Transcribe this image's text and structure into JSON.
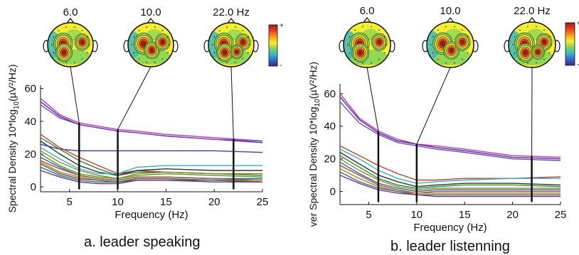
{
  "captions": {
    "a": "a. leader speaking",
    "b": "b. leader listenning"
  },
  "colorbar": {
    "plus": "+",
    "minus": "-",
    "colors": [
      "#9c1a1a",
      "#e83c1f",
      "#f7a21c",
      "#f4ee31",
      "#7fd35a",
      "#35b7c8",
      "#3b63c9",
      "#2e2f8f"
    ]
  },
  "chart_data": [
    {
      "type": "line",
      "panel": "a",
      "xlabel": "Frequency (Hz)",
      "ylabel": "Spectral Density 10*log10(µV²/Hz)",
      "ylabel_display": "Spectral Density 10*log",
      "ylabel_sub": "10",
      "ylabel_unit": "(µV²/Hz)",
      "xlim": [
        2,
        25
      ],
      "ylim": [
        -3,
        62
      ],
      "xticks": [
        5,
        10,
        15,
        20,
        25
      ],
      "yticks": [
        0,
        20,
        40,
        60
      ],
      "xtick_labels": [
        "5",
        "10",
        "15",
        "20",
        "25"
      ],
      "ytick_labels": [
        "0",
        "20",
        "40",
        "60"
      ],
      "markers": [
        {
          "freq": 6,
          "label": "6.0"
        },
        {
          "freq": 10,
          "label": "10.0"
        },
        {
          "freq": 22,
          "label": "22.0 Hz"
        }
      ],
      "x": [
        2,
        4,
        6,
        8,
        10,
        12,
        15,
        20,
        25
      ],
      "series": [
        {
          "color": "#d02fb0",
          "values": [
            54,
            44,
            39,
            37,
            35,
            34,
            32,
            30,
            28
          ]
        },
        {
          "color": "#4a2e9f",
          "values": [
            52,
            43,
            38,
            36,
            34,
            33,
            31,
            29,
            27
          ]
        },
        {
          "color": "#6a49c7",
          "values": [
            50,
            42,
            38,
            36,
            34,
            33,
            31,
            29,
            28
          ]
        },
        {
          "color": "#3b3bc4",
          "values": [
            26,
            23,
            22,
            22,
            22,
            22,
            22,
            22,
            21
          ]
        },
        {
          "color": "#d23a2a",
          "values": [
            32,
            24,
            18,
            13,
            8,
            10,
            9,
            8,
            8
          ]
        },
        {
          "color": "#2a8a3a",
          "values": [
            30,
            23,
            16,
            11,
            7,
            9,
            9,
            8,
            7
          ]
        },
        {
          "color": "#333333",
          "values": [
            28,
            20,
            13,
            9,
            7,
            10,
            11,
            10,
            10
          ]
        },
        {
          "color": "#27b8c8",
          "values": [
            24,
            17,
            11,
            8,
            8,
            12,
            13,
            13,
            13
          ]
        },
        {
          "color": "#8e8e20",
          "values": [
            22,
            15,
            10,
            7,
            5,
            8,
            9,
            8,
            8
          ]
        },
        {
          "color": "#4f9a2f",
          "values": [
            20,
            13,
            8,
            6,
            5,
            7,
            8,
            7,
            6
          ]
        },
        {
          "color": "#2c5fb0",
          "values": [
            18,
            12,
            7,
            5,
            4,
            6,
            6,
            5,
            5
          ]
        },
        {
          "color": "#a0522d",
          "values": [
            16,
            11,
            7,
            5,
            4,
            6,
            6,
            5,
            4
          ]
        },
        {
          "color": "#c07a1a",
          "values": [
            15,
            9,
            6,
            4,
            3,
            5,
            5,
            4,
            4
          ]
        },
        {
          "color": "#5a5a5a",
          "values": [
            14,
            8,
            5,
            4,
            3,
            5,
            5,
            4,
            3
          ]
        },
        {
          "color": "#1f7a7a",
          "values": [
            12,
            7,
            4,
            3,
            3,
            4,
            4,
            4,
            3
          ]
        },
        {
          "color": "#7a2f7a",
          "values": [
            10,
            6,
            3,
            2,
            2,
            4,
            4,
            3,
            3
          ]
        }
      ]
    },
    {
      "type": "line",
      "panel": "b",
      "xlabel": "Frequency (Hz)",
      "ylabel": "ver Spectral Density 10*log10(µV²/Hz)",
      "ylabel_display": "ver Spectral Density 10*log",
      "ylabel_sub": "10",
      "ylabel_unit": "(µV²/Hz)",
      "xlim": [
        2,
        25
      ],
      "ylim": [
        -8,
        66
      ],
      "xticks": [
        5,
        10,
        15,
        20,
        25
      ],
      "yticks": [
        0,
        20,
        40,
        60
      ],
      "xtick_labels": [
        "5",
        "10",
        "15",
        "20",
        "25"
      ],
      "ytick_labels": [
        "0",
        "20",
        "40",
        "60"
      ],
      "markers": [
        {
          "freq": 6,
          "label": "6.0"
        },
        {
          "freq": 10,
          "label": "10.0"
        },
        {
          "freq": 22,
          "label": "22.0 Hz"
        }
      ],
      "x": [
        2,
        4,
        6,
        8,
        10,
        12,
        15,
        20,
        25
      ],
      "series": [
        {
          "color": "#d02fb0",
          "values": [
            60,
            45,
            37,
            32,
            29,
            28,
            26,
            22,
            21
          ]
        },
        {
          "color": "#4a2e9f",
          "values": [
            58,
            44,
            36,
            31,
            29,
            27,
            25,
            21,
            20
          ]
        },
        {
          "color": "#6a49c7",
          "values": [
            55,
            42,
            35,
            30,
            28,
            26,
            24,
            20,
            19
          ]
        },
        {
          "color": "#d23a2a",
          "values": [
            28,
            22,
            16,
            11,
            7,
            7,
            8,
            8,
            9
          ]
        },
        {
          "color": "#27b8c8",
          "values": [
            26,
            20,
            13,
            8,
            5,
            6,
            7,
            8,
            8
          ]
        },
        {
          "color": "#333333",
          "values": [
            24,
            17,
            10,
            6,
            3,
            4,
            5,
            5,
            4
          ]
        },
        {
          "color": "#2a8a3a",
          "values": [
            22,
            15,
            8,
            4,
            2,
            3,
            4,
            4,
            3
          ]
        },
        {
          "color": "#8e8e20",
          "values": [
            20,
            13,
            7,
            3,
            1,
            2,
            2,
            2,
            2
          ]
        },
        {
          "color": "#2c5fb0",
          "values": [
            18,
            11,
            5,
            2,
            0,
            1,
            1,
            1,
            1
          ]
        },
        {
          "color": "#a0522d",
          "values": [
            16,
            10,
            4,
            1,
            -1,
            0,
            0,
            0,
            0
          ]
        },
        {
          "color": "#c07a1a",
          "values": [
            14,
            8,
            3,
            0,
            -1,
            -1,
            -1,
            -1,
            -1
          ]
        },
        {
          "color": "#1f7a7a",
          "values": [
            12,
            6,
            2,
            0,
            -2,
            -2,
            -2,
            -2,
            -2
          ]
        },
        {
          "color": "#7a2f7a",
          "values": [
            10,
            5,
            1,
            -1,
            -2,
            -3,
            -3,
            -3,
            -3
          ]
        }
      ]
    }
  ]
}
